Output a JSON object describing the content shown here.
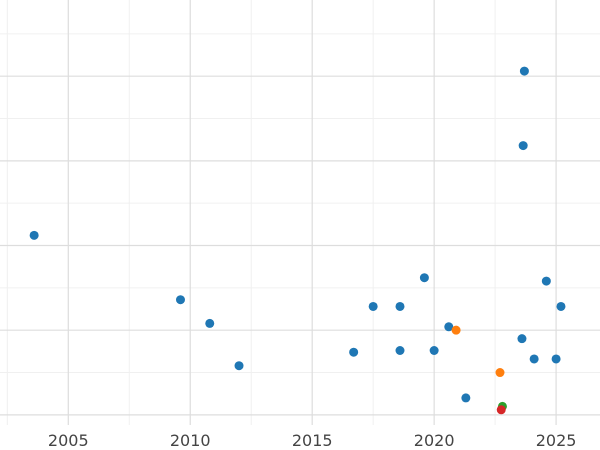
{
  "chart_data": {
    "type": "scatter",
    "title": "",
    "xlabel": "",
    "ylabel": "",
    "xlim": [
      2002.2,
      2026.8
    ],
    "ylim": [
      -0.6,
      24.5
    ],
    "x_ticks": [
      2005,
      2010,
      2015,
      2020,
      2025
    ],
    "x_tick_labels": [
      "2005",
      "2010",
      "2015",
      "2020",
      "2025"
    ],
    "y_gridlines": [
      0,
      5,
      10,
      15,
      20
    ],
    "grid": true,
    "show_y_tick_labels": false,
    "colors": {
      "blue": "#1f77b4",
      "orange": "#ff7f0e",
      "green": "#2ca02c",
      "red": "#d62728",
      "grid_major": "#dddddd",
      "grid_minor": "#f0f0f0",
      "tick_text": "#444444"
    },
    "series": [
      {
        "color": "#1f77b4",
        "points": [
          {
            "x": 2003.6,
            "y": 10.6
          },
          {
            "x": 2009.6,
            "y": 6.8
          },
          {
            "x": 2010.8,
            "y": 5.4
          },
          {
            "x": 2012.0,
            "y": 2.9
          },
          {
            "x": 2016.7,
            "y": 3.7
          },
          {
            "x": 2017.5,
            "y": 6.4
          },
          {
            "x": 2018.6,
            "y": 6.4
          },
          {
            "x": 2018.6,
            "y": 3.8
          },
          {
            "x": 2019.6,
            "y": 8.1
          },
          {
            "x": 2020.0,
            "y": 3.8
          },
          {
            "x": 2020.6,
            "y": 5.2
          },
          {
            "x": 2021.3,
            "y": 1.0
          },
          {
            "x": 2023.6,
            "y": 4.5
          },
          {
            "x": 2023.65,
            "y": 15.9
          },
          {
            "x": 2023.7,
            "y": 20.3
          },
          {
            "x": 2024.1,
            "y": 3.3
          },
          {
            "x": 2024.6,
            "y": 7.9
          },
          {
            "x": 2025.0,
            "y": 3.3
          },
          {
            "x": 2025.2,
            "y": 6.4
          }
        ]
      },
      {
        "color": "#ff7f0e",
        "points": [
          {
            "x": 2020.9,
            "y": 5.0
          },
          {
            "x": 2022.7,
            "y": 2.5
          }
        ]
      },
      {
        "color": "#2ca02c",
        "points": [
          {
            "x": 2022.8,
            "y": 0.5
          }
        ]
      },
      {
        "color": "#d62728",
        "points": [
          {
            "x": 2022.75,
            "y": 0.3
          }
        ]
      }
    ]
  }
}
